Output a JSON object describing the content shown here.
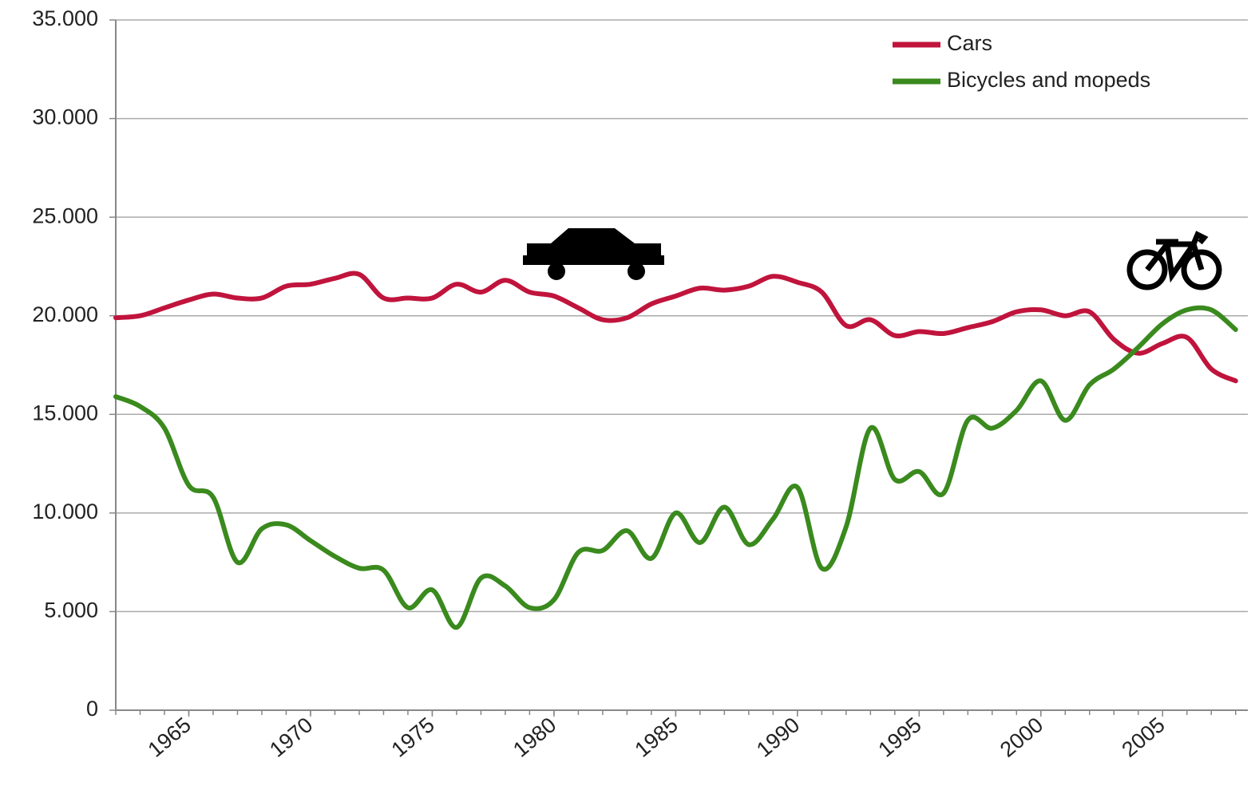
{
  "chart_data": {
    "type": "line",
    "x": [
      1962,
      1963,
      1964,
      1965,
      1966,
      1967,
      1968,
      1969,
      1970,
      1971,
      1972,
      1973,
      1974,
      1975,
      1976,
      1977,
      1978,
      1979,
      1980,
      1981,
      1982,
      1983,
      1984,
      1985,
      1986,
      1987,
      1988,
      1989,
      1990,
      1991,
      1992,
      1993,
      1994,
      1995,
      1996,
      1997,
      1998,
      1999,
      2000,
      2001,
      2002,
      2003,
      2004,
      2005,
      2006,
      2007,
      2008
    ],
    "series": [
      {
        "name": "Cars",
        "color": "#c0143c",
        "values": [
          19900,
          20000,
          20400,
          20800,
          21100,
          20900,
          20900,
          21500,
          21600,
          21900,
          22100,
          20900,
          20900,
          20900,
          21600,
          21200,
          21800,
          21200,
          21000,
          20400,
          19800,
          19900,
          20600,
          21000,
          21400,
          21300,
          21500,
          22000,
          21700,
          21200,
          19500,
          19800,
          19000,
          19200,
          19100,
          19400,
          19700,
          20200,
          20300,
          20000,
          20200,
          18800,
          18100,
          18600,
          18900,
          17300,
          16700
        ]
      },
      {
        "name": "Bicycles and mopeds",
        "color": "#3a8a1e",
        "values": [
          15900,
          15400,
          14300,
          11400,
          10800,
          7500,
          9200,
          9400,
          8600,
          7800,
          7200,
          7100,
          5200,
          6100,
          4200,
          6700,
          6300,
          5200,
          5600,
          8000,
          8100,
          9100,
          7700,
          10000,
          8500,
          10300,
          8400,
          9700,
          11300,
          7200,
          9300,
          14300,
          11700,
          12100,
          11000,
          14700,
          14300,
          15200,
          16700,
          14700,
          16500,
          17300,
          18400,
          19600,
          20300,
          20300,
          19300
        ]
      }
    ],
    "xlim": [
      1962,
      2008.5
    ],
    "xticks": [
      1965,
      1970,
      1975,
      1980,
      1985,
      1990,
      1995,
      2000,
      2005
    ],
    "ylim": [
      0,
      35000
    ],
    "yticks": [
      0,
      {
        "value": 5000,
        "label": "5.000"
      },
      {
        "value": 10000,
        "label": "10.000"
      },
      {
        "value": 15000,
        "label": "15.000"
      },
      {
        "value": 20000,
        "label": "20.000"
      },
      {
        "value": 25000,
        "label": "25.000"
      },
      {
        "value": 30000,
        "label": "30.000"
      },
      {
        "value": 35000,
        "label": "35.000"
      }
    ],
    "grid": true,
    "legend": "upper right"
  }
}
